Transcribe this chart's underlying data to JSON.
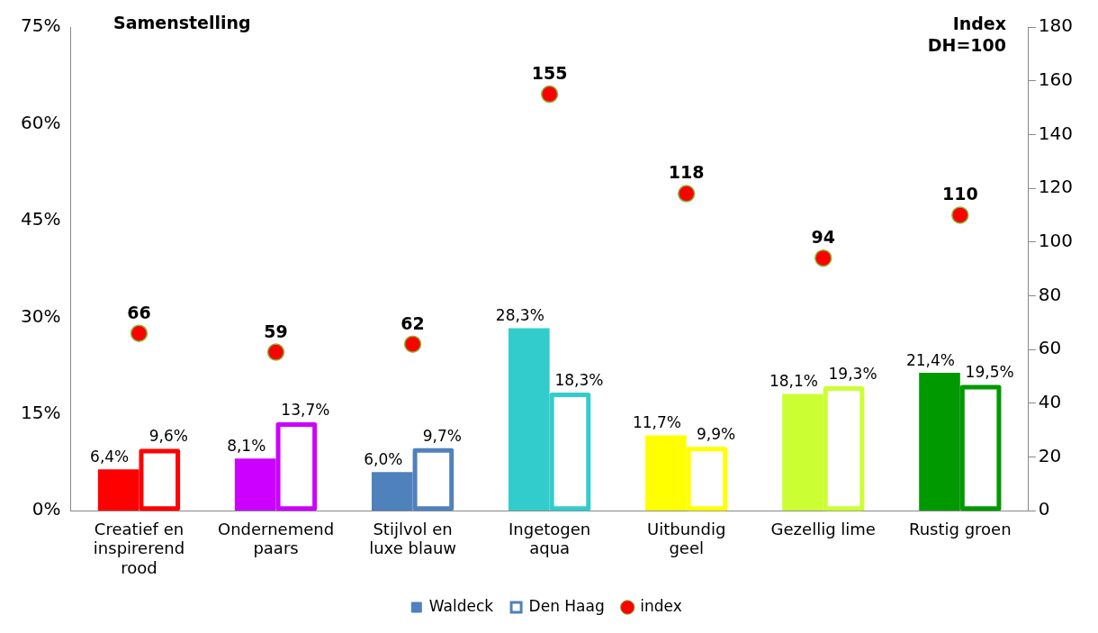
{
  "chart_data": {
    "type": "bar",
    "ylabel": "Samenstelling",
    "y2label": "Index DH=100",
    "categories": [
      "Creatief en inspirerend rood",
      "Ondernemend paars",
      "Stijlvol en luxe blauw",
      "Ingetogen aqua",
      "Uitbundig geel",
      "Gezellig lime",
      "Rustig groen"
    ],
    "series": [
      {
        "name": "Waldeck",
        "color": "#4f81bd",
        "colors": [
          "#ff0000",
          "#cc00ff",
          "#4f81bd",
          "#33cccc",
          "#ffff00",
          "#ccff33",
          "#009900"
        ],
        "values": [
          6.4,
          8.1,
          6.0,
          28.3,
          11.7,
          18.1,
          21.4
        ],
        "value_labels": [
          "6,4%",
          "8,1%",
          "6,0%",
          "28,3%",
          "11,7%",
          "18,1%",
          "21,4%"
        ]
      },
      {
        "name": "Den Haag",
        "color": "#4f81bd",
        "colors": [
          "#ff0000",
          "#cc00ff",
          "#4f81bd",
          "#33cccc",
          "#ffff00",
          "#ccff33",
          "#009900"
        ],
        "values": [
          9.6,
          13.7,
          9.7,
          18.3,
          9.9,
          19.3,
          19.5
        ],
        "value_labels": [
          "9,6%",
          "13,7%",
          "9,7%",
          "18,3%",
          "9,9%",
          "19,3%",
          "19,5%"
        ]
      },
      {
        "name": "index",
        "type": "scatter",
        "axis": "y2",
        "marker": "circle",
        "color": "#ff0000",
        "values": [
          66,
          59,
          62,
          155,
          118,
          94,
          110
        ],
        "value_labels": [
          "66",
          "59",
          "62",
          "155",
          "118",
          "94",
          "110"
        ]
      }
    ],
    "ylim": [
      0,
      75
    ],
    "yticks": [
      {
        "value": 0,
        "label": "0%"
      },
      {
        "value": 15,
        "label": "15%"
      },
      {
        "value": 30,
        "label": "30%"
      },
      {
        "value": 45,
        "label": "45%"
      },
      {
        "value": 60,
        "label": "60%"
      },
      {
        "value": 75,
        "label": "75%"
      }
    ],
    "y2lim": [
      0,
      180
    ],
    "y2ticks": [
      0,
      20,
      40,
      60,
      80,
      100,
      120,
      140,
      160,
      180
    ],
    "legend": "bottom",
    "grid": false
  }
}
